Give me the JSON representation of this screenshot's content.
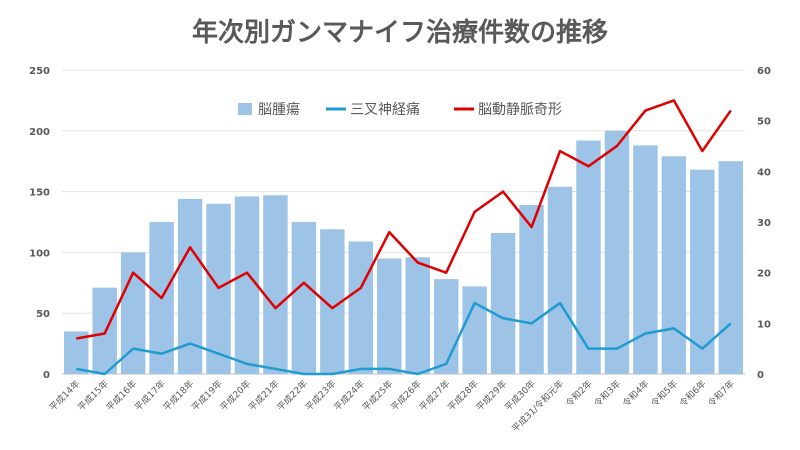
{
  "chart_data": {
    "type": "bar+line",
    "title": "年次別ガンマナイフ治療件数の推移",
    "categories": [
      "平成14年",
      "平成15年",
      "平成16年",
      "平成17年",
      "平成18年",
      "平成19年",
      "平成20年",
      "平成21年",
      "平成22年",
      "平成23年",
      "平成24年",
      "平成25年",
      "平成26年",
      "平成27年",
      "平成28年",
      "平成29年",
      "平成30年",
      "平成31/令和元年",
      "令和2年",
      "令和3年",
      "令和4年",
      "令和5年",
      "令和6年",
      "令和7年"
    ],
    "series": [
      {
        "name": "脳腫瘍",
        "type": "bar",
        "axis": "left",
        "color": "#9dc3e6",
        "values": [
          35,
          71,
          100,
          125,
          144,
          140,
          146,
          147,
          125,
          119,
          109,
          95,
          96,
          78,
          72,
          116,
          139,
          154,
          192,
          200,
          188,
          179,
          168,
          175
        ]
      },
      {
        "name": "三叉神経痛",
        "type": "line",
        "axis": "right",
        "color": "#1f9bd1",
        "values": [
          1,
          0,
          5,
          4,
          6,
          4,
          2,
          1,
          0,
          0,
          1,
          1,
          0,
          2,
          14,
          11,
          10,
          14,
          5,
          5,
          8,
          9,
          5,
          10
        ]
      },
      {
        "name": "脳動静脈奇形",
        "type": "line",
        "axis": "right",
        "color": "#e00000",
        "values": [
          7,
          8,
          20,
          15,
          25,
          17,
          20,
          13,
          18,
          13,
          17,
          28,
          22,
          20,
          32,
          36,
          29,
          44,
          41,
          45,
          52,
          54,
          44,
          52
        ]
      }
    ],
    "left_axis": {
      "range": [
        0,
        250
      ],
      "ticks": [
        0,
        50,
        100,
        150,
        200,
        250
      ]
    },
    "right_axis": {
      "range": [
        0,
        60
      ],
      "ticks": [
        0,
        10,
        20,
        30,
        40,
        50,
        60
      ]
    },
    "grid": true,
    "legend": "top"
  }
}
